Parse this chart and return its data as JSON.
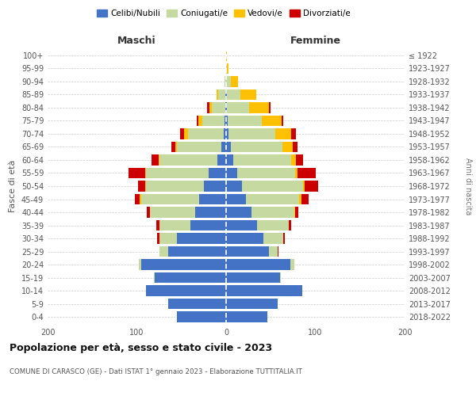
{
  "age_groups": [
    "0-4",
    "5-9",
    "10-14",
    "15-19",
    "20-24",
    "25-29",
    "30-34",
    "35-39",
    "40-44",
    "45-49",
    "50-54",
    "55-59",
    "60-64",
    "65-69",
    "70-74",
    "75-79",
    "80-84",
    "85-89",
    "90-94",
    "95-99",
    "100+"
  ],
  "birth_years": [
    "2018-2022",
    "2013-2017",
    "2008-2012",
    "2003-2007",
    "1998-2002",
    "1993-1997",
    "1988-1992",
    "1983-1987",
    "1978-1982",
    "1973-1977",
    "1968-1972",
    "1963-1967",
    "1958-1962",
    "1953-1957",
    "1948-1952",
    "1943-1947",
    "1938-1942",
    "1933-1937",
    "1928-1932",
    "1923-1927",
    "≤ 1922"
  ],
  "males": {
    "celibi": [
      55,
      65,
      90,
      80,
      95,
      65,
      55,
      40,
      35,
      30,
      25,
      20,
      10,
      5,
      3,
      2,
      1,
      1,
      0,
      0,
      0
    ],
    "coniugati": [
      0,
      0,
      0,
      1,
      3,
      10,
      20,
      35,
      50,
      65,
      65,
      70,
      65,
      50,
      40,
      25,
      15,
      8,
      2,
      0,
      0
    ],
    "vedovi": [
      0,
      0,
      0,
      0,
      0,
      0,
      0,
      0,
      0,
      2,
      1,
      1,
      1,
      2,
      4,
      4,
      3,
      2,
      0,
      0,
      0
    ],
    "divorziati": [
      0,
      0,
      0,
      0,
      0,
      0,
      2,
      3,
      4,
      5,
      8,
      18,
      8,
      4,
      5,
      2,
      2,
      0,
      0,
      0,
      0
    ]
  },
  "females": {
    "nubili": [
      46,
      58,
      85,
      60,
      72,
      48,
      42,
      35,
      28,
      22,
      18,
      12,
      8,
      5,
      3,
      2,
      1,
      1,
      0,
      0,
      0
    ],
    "coniugate": [
      0,
      0,
      0,
      1,
      4,
      10,
      22,
      35,
      48,
      60,
      68,
      65,
      65,
      58,
      52,
      38,
      25,
      15,
      5,
      1,
      0
    ],
    "vedove": [
      0,
      0,
      0,
      0,
      0,
      0,
      0,
      0,
      1,
      2,
      2,
      3,
      5,
      12,
      18,
      22,
      22,
      18,
      8,
      2,
      1
    ],
    "divorziate": [
      0,
      0,
      0,
      0,
      0,
      1,
      2,
      3,
      4,
      8,
      15,
      20,
      8,
      5,
      5,
      2,
      2,
      0,
      0,
      0,
      0
    ]
  },
  "colors": {
    "celibi": "#4472c4",
    "coniugati": "#c5d9a0",
    "vedovi": "#ffc000",
    "divorziati": "#cc0000"
  },
  "title": "Popolazione per età, sesso e stato civile - 2023",
  "subtitle": "COMUNE DI CARASCO (GE) - Dati ISTAT 1° gennaio 2023 - Elaborazione TUTTITALIA.IT",
  "xlabel_left": "Maschi",
  "xlabel_right": "Femmine",
  "ylabel_left": "Fasce di età",
  "ylabel_right": "Anni di nascita",
  "legend_labels": [
    "Celibi/Nubili",
    "Coniugati/e",
    "Vedovi/e",
    "Divorziati/e"
  ],
  "xlim": 200,
  "background_color": "#ffffff"
}
